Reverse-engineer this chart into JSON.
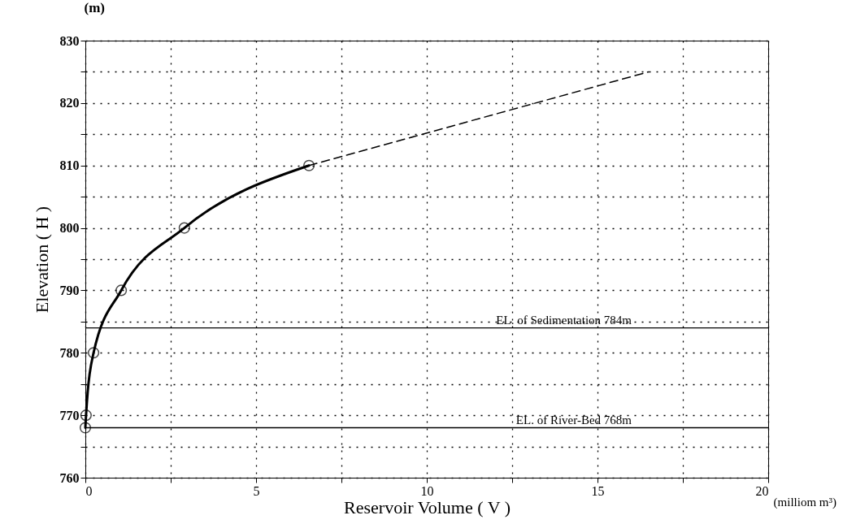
{
  "chart_data": {
    "type": "line",
    "xlabel": "Reservoir Volume ( V )",
    "ylabel": "Elevation ( H )",
    "annotations": [
      "(m)",
      "(milliom m³)"
    ],
    "series": [
      {
        "color": "#000000",
        "marker": "circle",
        "line_style": "solid",
        "x": [
          0,
          0.02,
          0.24,
          1.05,
          2.9,
          6.55
        ],
        "values": [
          768,
          770,
          780,
          790,
          800,
          810
        ]
      },
      {
        "color": "#000000",
        "marker": "none",
        "line_style": "dashed",
        "x": [
          6.55,
          16.5
        ],
        "values": [
          810,
          825
        ]
      }
    ],
    "xlim": [
      0,
      20
    ],
    "ylim": [
      760,
      830
    ],
    "xticks": [
      0,
      {
        "value": 2.5,
        "label": null
      },
      5,
      {
        "value": 7.5,
        "label": null
      },
      10,
      {
        "value": 12.5,
        "label": null
      },
      15,
      {
        "value": 17.5,
        "label": null
      },
      20
    ],
    "yticks": [
      760,
      {
        "value": 765,
        "label": null
      },
      770,
      {
        "value": 775,
        "label": null
      },
      780,
      {
        "value": 785,
        "label": null
      },
      790,
      {
        "value": 795,
        "label": null
      },
      800,
      {
        "value": 805,
        "label": null
      },
      810,
      {
        "value": 815,
        "label": null
      },
      820,
      {
        "value": 825,
        "label": null
      },
      830
    ],
    "ref_lines": [
      {
        "axis": "y",
        "value": 784,
        "label": "EL. of Sedimentation 784m",
        "color": "#000000"
      },
      {
        "axis": "y",
        "value": 768,
        "label": "EL. of River-Bed 768m",
        "color": "#000000"
      }
    ],
    "grid": true
  }
}
